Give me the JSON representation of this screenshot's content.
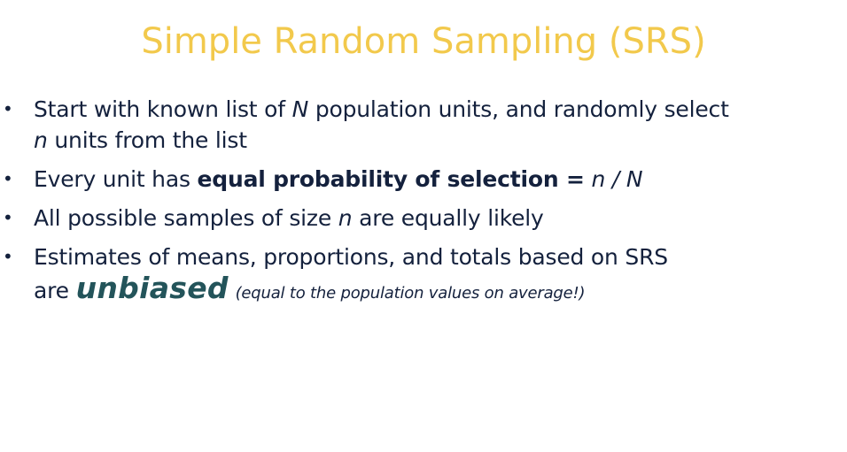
{
  "title": "Simple Random Sampling (SRS)",
  "bullet_glyph": "•",
  "bullets": [
    {
      "line1_a": "Start with known list of ",
      "line1_N": "N",
      "line1_b": " population units, and randomly select",
      "line2_n": "n",
      "line2_b": " units from the list"
    },
    {
      "a": "Every unit has ",
      "bold": "equal probability of selection =",
      "b": " ",
      "formula": "n / N"
    },
    {
      "a": "All possible samples of size ",
      "n": "n",
      "b": " are equally likely"
    },
    {
      "line1": "Estimates of means, proportions, and totals based on SRS",
      "line2_a": "are ",
      "emph": "unbiased",
      "note": "(equal to the population values on average!)"
    }
  ],
  "colors": {
    "title": "#f2c94c",
    "text": "#14213d",
    "emphasis": "#23545a"
  }
}
